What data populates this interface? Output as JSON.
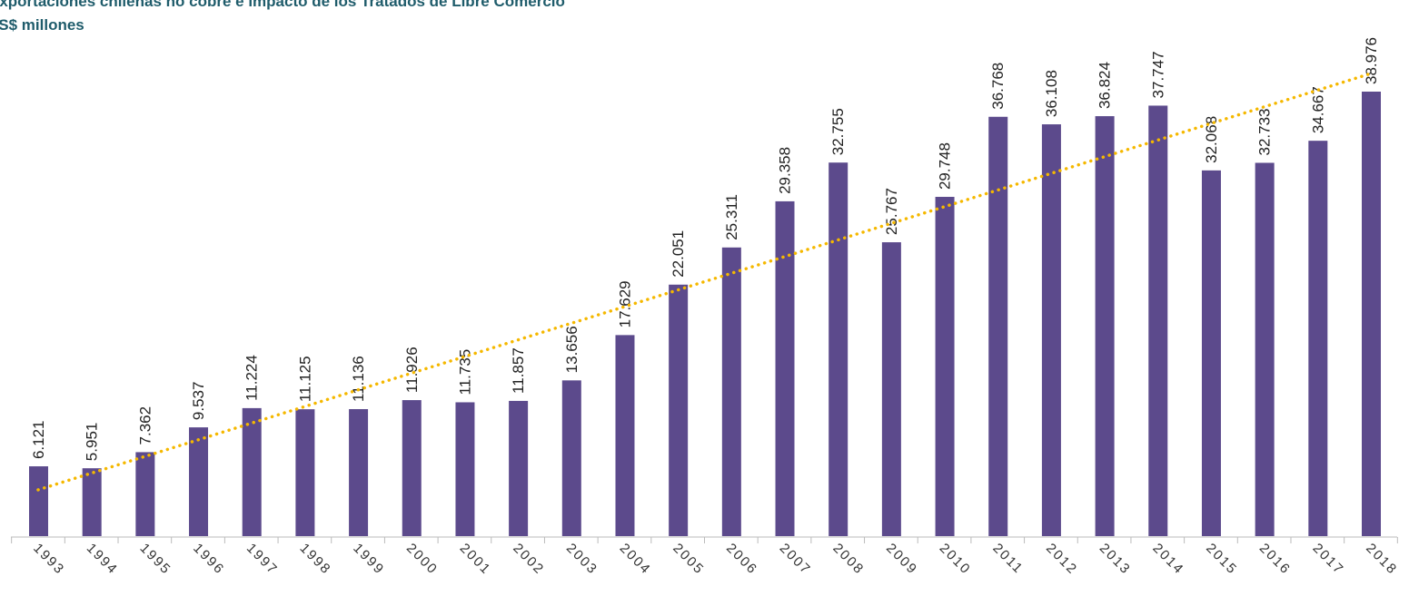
{
  "chart_data": {
    "type": "bar",
    "title": "Exportaciones chilenas no cobre e impacto de los Tratados de Libre Comercio",
    "subtitle": "US$ millones",
    "categories": [
      "1993",
      "1994",
      "1995",
      "1996",
      "1997",
      "1998",
      "1999",
      "2000",
      "2001",
      "2002",
      "2003",
      "2004",
      "2005",
      "2006",
      "2007",
      "2008",
      "2009",
      "2010",
      "2011",
      "2012",
      "2013",
      "2014",
      "2015",
      "2016",
      "2017",
      "2018"
    ],
    "values": [
      6121,
      5951,
      7362,
      9537,
      11224,
      11125,
      11136,
      11926,
      11735,
      11857,
      13656,
      17629,
      22051,
      25311,
      29358,
      32755,
      25767,
      29748,
      36768,
      36108,
      36824,
      37747,
      32068,
      32733,
      34667,
      38976
    ],
    "value_labels": [
      "6.121",
      "5.951",
      "7.362",
      "9.537",
      "11.224",
      "11.125",
      "11.136",
      "11.926",
      "11.735",
      "11.857",
      "13.656",
      "17.629",
      "22.051",
      "25.311",
      "29.358",
      "32.755",
      "25.767",
      "29.748",
      "36.768",
      "36.108",
      "36.824",
      "37.747",
      "32.068",
      "32.733",
      "34.667",
      "38.976"
    ],
    "color": "#5c4a8c",
    "trendline": "linear",
    "trendline_color": "#f5b800"
  }
}
